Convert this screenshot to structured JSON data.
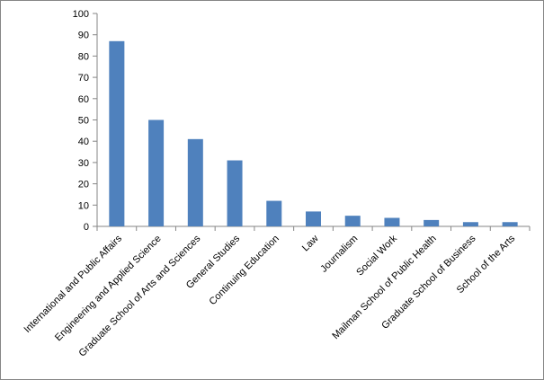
{
  "chart_data": {
    "type": "bar",
    "title": "",
    "xlabel": "",
    "ylabel": "",
    "ylim": [
      0,
      100
    ],
    "yticks": [
      0,
      10,
      20,
      30,
      40,
      50,
      60,
      70,
      80,
      90,
      100
    ],
    "grid": false,
    "legend": "none",
    "bar_color": "#4F81BD",
    "categories": [
      "International and Public Affairs",
      "Engineering and Applied Science",
      "Graduate School of Arts and Sciences",
      "General Studies",
      "Continuing Education",
      "Law",
      "Journalism",
      "Social Work",
      "Mailman School of Public Health",
      "Graduate School of Business",
      "School of the Arts"
    ],
    "values": [
      87,
      50,
      41,
      31,
      12,
      7,
      5,
      4,
      3,
      2,
      2
    ]
  }
}
